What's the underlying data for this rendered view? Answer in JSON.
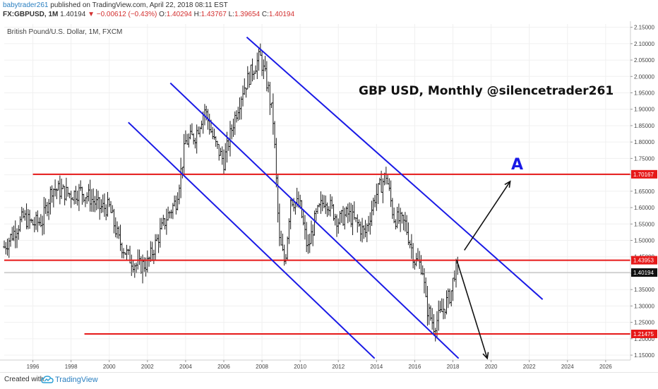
{
  "header": {
    "author": "babytrader261",
    "published_text": "published on TradingView.com, April 22, 2018 08:11 EST",
    "symbol": "FX:GBPUSD, 1M",
    "last": "1.40194",
    "change_arrow": "▼",
    "change": "−0.00612 (−0.43%)",
    "o_label": "O:",
    "o_val": "1.40294",
    "h_label": "H:",
    "h_val": "1.43767",
    "l_label": "L:",
    "l_val": "1.39654",
    "c_label": "C:",
    "c_val": "1.40194"
  },
  "footer": {
    "created_with": "Created with",
    "brand": "TradingView",
    "logo_icon": "tradingview-cloud-icon"
  },
  "colors": {
    "candle": "#1a1a1a",
    "channel": "#1a1ae6",
    "level": "#e61919",
    "arrow": "#111111",
    "axis_text": "#444444",
    "grid": "#f0f0f0"
  },
  "chart_data": {
    "type": "ohlc",
    "chart_label": "British Pound/U.S. Dollar, 1M, FXCM",
    "annotation_title": "GBP USD, Monthly @silencetrader261",
    "annotation_letter": "A",
    "x_range": [
      1994.5,
      2027.3
    ],
    "y_range": [
      1.135,
      2.16
    ],
    "x_ticks": [
      "1996",
      "1998",
      "2000",
      "2002",
      "2004",
      "2006",
      "2008",
      "2010",
      "2012",
      "2014",
      "2016",
      "2018",
      "2020",
      "2022",
      "2024",
      "2026"
    ],
    "y_ticks": [
      "1.15000",
      "1.20000",
      "1.25000",
      "1.30000",
      "1.35000",
      "1.40000",
      "1.45000",
      "1.50000",
      "1.55000",
      "1.60000",
      "1.65000",
      "1.70000",
      "1.75000",
      "1.80000",
      "1.85000",
      "1.90000",
      "1.95000",
      "2.00000",
      "2.05000",
      "2.10000",
      "2.15000"
    ],
    "price_anchors": [
      [
        1994.5,
        1.48
      ],
      [
        1995.5,
        1.57
      ],
      [
        1996.0,
        1.55
      ],
      [
        1996.5,
        1.56
      ],
      [
        1997.0,
        1.66
      ],
      [
        1997.5,
        1.65
      ],
      [
        1998.0,
        1.64
      ],
      [
        1998.5,
        1.65
      ],
      [
        1999.0,
        1.63
      ],
      [
        1999.5,
        1.6
      ],
      [
        2000.0,
        1.6
      ],
      [
        2000.5,
        1.5
      ],
      [
        2001.0,
        1.45
      ],
      [
        2001.5,
        1.42
      ],
      [
        2002.0,
        1.43
      ],
      [
        2002.5,
        1.5
      ],
      [
        2003.0,
        1.57
      ],
      [
        2003.5,
        1.62
      ],
      [
        2004.0,
        1.8
      ],
      [
        2004.5,
        1.82
      ],
      [
        2005.0,
        1.9
      ],
      [
        2005.5,
        1.8
      ],
      [
        2006.0,
        1.74
      ],
      [
        2006.5,
        1.86
      ],
      [
        2007.0,
        1.96
      ],
      [
        2007.5,
        2.02
      ],
      [
        2007.9,
        2.06
      ],
      [
        2008.3,
        1.97
      ],
      [
        2008.6,
        1.86
      ],
      [
        2008.9,
        1.5
      ],
      [
        2009.2,
        1.43
      ],
      [
        2009.5,
        1.63
      ],
      [
        2010.0,
        1.6
      ],
      [
        2010.4,
        1.47
      ],
      [
        2010.8,
        1.57
      ],
      [
        2011.3,
        1.63
      ],
      [
        2012.0,
        1.56
      ],
      [
        2012.5,
        1.58
      ],
      [
        2013.0,
        1.55
      ],
      [
        2013.4,
        1.52
      ],
      [
        2013.9,
        1.63
      ],
      [
        2014.5,
        1.7
      ],
      [
        2014.9,
        1.57
      ],
      [
        2015.5,
        1.55
      ],
      [
        2016.0,
        1.44
      ],
      [
        2016.4,
        1.42
      ],
      [
        2016.6,
        1.3
      ],
      [
        2017.0,
        1.24
      ],
      [
        2017.4,
        1.28
      ],
      [
        2017.9,
        1.34
      ],
      [
        2018.1,
        1.41
      ],
      [
        2018.3,
        1.40194
      ]
    ],
    "levels": [
      {
        "from_x": 1996.0,
        "to_x": 2027.3,
        "y": 1.70167,
        "label": "1.70167"
      },
      {
        "from_x": 1994.5,
        "to_x": 2027.3,
        "y": 1.43953,
        "label": "1.43953"
      },
      {
        "from_x": 1998.7,
        "to_x": 2027.3,
        "y": 1.21475,
        "label": "1.21475"
      }
    ],
    "last_price": {
      "y": 1.40194,
      "label": "1.40194"
    },
    "channels": [
      [
        [
          2007.2,
          2.12
        ],
        [
          2022.7,
          1.32
        ]
      ],
      [
        [
          2003.2,
          1.98
        ],
        [
          2018.3,
          1.14
        ]
      ],
      [
        [
          2001.0,
          1.86
        ],
        [
          2013.9,
          1.14
        ]
      ]
    ],
    "arrows": [
      [
        [
          2018.6,
          1.47
        ],
        [
          2021.0,
          1.68
        ]
      ],
      [
        [
          2018.2,
          1.44
        ],
        [
          2019.8,
          1.14
        ]
      ]
    ]
  }
}
